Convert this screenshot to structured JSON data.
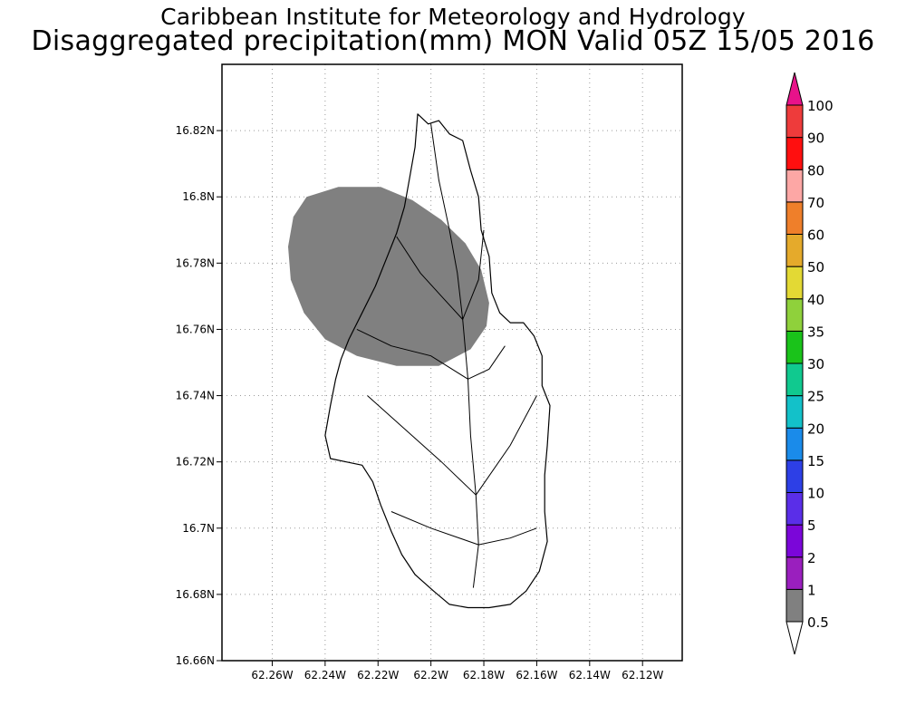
{
  "title": "Caribbean Institute for Meteorology and Hydrology",
  "subtitle": "Disaggregated precipitation(mm) MON Valid 05Z 15/05 2016",
  "map": {
    "lat_ticks": [
      {
        "value": 16.82,
        "label": "16.82N"
      },
      {
        "value": 16.8,
        "label": "16.8N"
      },
      {
        "value": 16.78,
        "label": "16.78N"
      },
      {
        "value": 16.76,
        "label": "16.76N"
      },
      {
        "value": 16.74,
        "label": "16.74N"
      },
      {
        "value": 16.72,
        "label": "16.72N"
      },
      {
        "value": 16.7,
        "label": "16.7N"
      },
      {
        "value": 16.68,
        "label": "16.68N"
      },
      {
        "value": 16.66,
        "label": "16.66N"
      }
    ],
    "lon_ticks": [
      {
        "value": -62.26,
        "label": "62.26W"
      },
      {
        "value": -62.24,
        "label": "62.24W"
      },
      {
        "value": -62.22,
        "label": "62.22W"
      },
      {
        "value": -62.2,
        "label": "62.2W"
      },
      {
        "value": -62.18,
        "label": "62.18W"
      },
      {
        "value": -62.16,
        "label": "62.16W"
      },
      {
        "value": -62.14,
        "label": "62.14W"
      },
      {
        "value": -62.12,
        "label": "62.12W"
      }
    ],
    "lat_range": [
      16.66,
      16.84
    ],
    "lon_range": [
      -62.279,
      -62.105
    ],
    "grid": true,
    "precip_area": {
      "category": "0.5-1",
      "color": "#808080",
      "outline": [
        [
          -62.252,
          16.794
        ],
        [
          -62.247,
          16.8
        ],
        [
          -62.235,
          16.803
        ],
        [
          -62.219,
          16.803
        ],
        [
          -62.207,
          16.799
        ],
        [
          -62.196,
          16.793
        ],
        [
          -62.187,
          16.786
        ],
        [
          -62.181,
          16.778
        ],
        [
          -62.178,
          16.768
        ],
        [
          -62.179,
          16.761
        ],
        [
          -62.185,
          16.754
        ],
        [
          -62.197,
          16.749
        ],
        [
          -62.213,
          16.749
        ],
        [
          -62.228,
          16.752
        ],
        [
          -62.24,
          16.757
        ],
        [
          -62.248,
          16.765
        ],
        [
          -62.253,
          16.775
        ],
        [
          -62.254,
          16.785
        ]
      ]
    },
    "island_outline": [
      [
        -62.205,
        16.825
      ],
      [
        -62.201,
        16.822
      ],
      [
        -62.197,
        16.823
      ],
      [
        -62.193,
        16.819
      ],
      [
        -62.188,
        16.817
      ],
      [
        -62.185,
        16.808
      ],
      [
        -62.182,
        16.8
      ],
      [
        -62.181,
        16.79
      ],
      [
        -62.178,
        16.782
      ],
      [
        -62.177,
        16.771
      ],
      [
        -62.174,
        16.765
      ],
      [
        -62.17,
        16.762
      ],
      [
        -62.165,
        16.762
      ],
      [
        -62.161,
        16.758
      ],
      [
        -62.158,
        16.752
      ],
      [
        -62.158,
        16.743
      ],
      [
        -62.155,
        16.737
      ],
      [
        -62.156,
        16.725
      ],
      [
        -62.157,
        16.716
      ],
      [
        -62.157,
        16.705
      ],
      [
        -62.156,
        16.696
      ],
      [
        -62.159,
        16.687
      ],
      [
        -62.164,
        16.681
      ],
      [
        -62.17,
        16.677
      ],
      [
        -62.178,
        16.676
      ],
      [
        -62.186,
        16.676
      ],
      [
        -62.193,
        16.677
      ],
      [
        -62.199,
        16.681
      ],
      [
        -62.206,
        16.686
      ],
      [
        -62.211,
        16.692
      ],
      [
        -62.215,
        16.699
      ],
      [
        -62.219,
        16.707
      ],
      [
        -62.222,
        16.714
      ],
      [
        -62.226,
        16.719
      ],
      [
        -62.232,
        16.72
      ],
      [
        -62.238,
        16.721
      ],
      [
        -62.24,
        16.728
      ],
      [
        -62.238,
        16.737
      ],
      [
        -62.236,
        16.745
      ],
      [
        -62.234,
        16.751
      ],
      [
        -62.231,
        16.757
      ],
      [
        -62.226,
        16.765
      ],
      [
        -62.221,
        16.773
      ],
      [
        -62.217,
        16.781
      ],
      [
        -62.213,
        16.789
      ],
      [
        -62.21,
        16.797
      ],
      [
        -62.208,
        16.806
      ],
      [
        -62.206,
        16.815
      ]
    ],
    "basin_lines": [
      [
        [
          -62.2,
          16.822
        ],
        [
          -62.197,
          16.805
        ],
        [
          -62.193,
          16.79
        ],
        [
          -62.19,
          16.777
        ],
        [
          -62.188,
          16.763
        ]
      ],
      [
        [
          -62.213,
          16.788
        ],
        [
          -62.204,
          16.777
        ],
        [
          -62.196,
          16.77
        ],
        [
          -62.188,
          16.763
        ]
      ],
      [
        [
          -62.18,
          16.79
        ],
        [
          -62.182,
          16.775
        ],
        [
          -62.188,
          16.763
        ]
      ],
      [
        [
          -62.188,
          16.763
        ],
        [
          -62.186,
          16.745
        ],
        [
          -62.185,
          16.728
        ],
        [
          -62.183,
          16.71
        ],
        [
          -62.182,
          16.695
        ],
        [
          -62.184,
          16.682
        ]
      ],
      [
        [
          -62.224,
          16.74
        ],
        [
          -62.21,
          16.73
        ],
        [
          -62.196,
          16.72
        ],
        [
          -62.183,
          16.71
        ]
      ],
      [
        [
          -62.16,
          16.74
        ],
        [
          -62.17,
          16.725
        ],
        [
          -62.183,
          16.71
        ]
      ],
      [
        [
          -62.215,
          16.705
        ],
        [
          -62.2,
          16.7
        ],
        [
          -62.182,
          16.695
        ]
      ],
      [
        [
          -62.16,
          16.7
        ],
        [
          -62.17,
          16.697
        ],
        [
          -62.182,
          16.695
        ]
      ],
      [
        [
          -62.172,
          16.755
        ],
        [
          -62.178,
          16.748
        ],
        [
          -62.186,
          16.745
        ]
      ],
      [
        [
          -62.228,
          16.76
        ],
        [
          -62.215,
          16.755
        ],
        [
          -62.2,
          16.752
        ],
        [
          -62.186,
          16.745
        ]
      ]
    ]
  },
  "colorbar": {
    "levels": [
      "0.5",
      "1",
      "2",
      "5",
      "10",
      "15",
      "20",
      "25",
      "30",
      "35",
      "40",
      "50",
      "60",
      "70",
      "80",
      "90",
      "100"
    ],
    "colors": [
      "#808080",
      "#9a1fbe",
      "#7b06d9",
      "#5a2ee8",
      "#2d3fe6",
      "#1a8bea",
      "#13c1c9",
      "#10c98f",
      "#1ac31a",
      "#8fd13b",
      "#e3d934",
      "#e5aa2b",
      "#ef7f2a",
      "#fda7a5",
      "#ff0f0f",
      "#ee3b3b"
    ],
    "over_color": "#e8128a",
    "under_color": "#ffffff"
  }
}
